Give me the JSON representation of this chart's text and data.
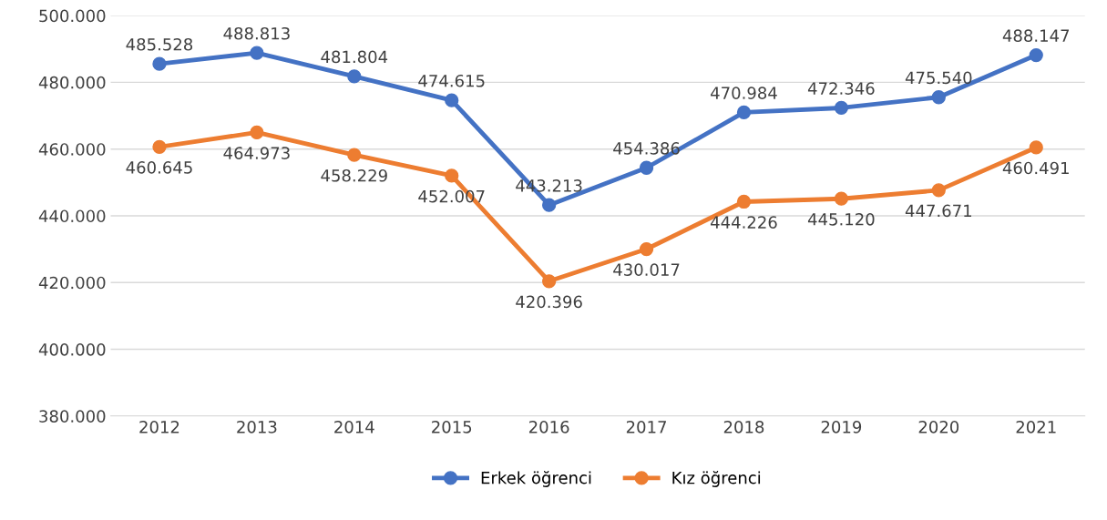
{
  "chart_data": {
    "type": "line",
    "categories": [
      "2012",
      "2013",
      "2014",
      "2015",
      "2016",
      "2017",
      "2018",
      "2019",
      "2020",
      "2021"
    ],
    "series": [
      {
        "name": "Erkek öğrenci",
        "color": "#4472c4",
        "values": [
          485528,
          488813,
          481804,
          474615,
          443213,
          454386,
          470984,
          472346,
          475540,
          488147
        ],
        "value_labels": [
          "485.528",
          "488.813",
          "481.804",
          "474.615",
          "443.213",
          "454.386",
          "470.984",
          "472.346",
          "475.540",
          "488.147"
        ]
      },
      {
        "name": "Kız öğrenci",
        "color": "#ed7d31",
        "values": [
          460645,
          464973,
          458229,
          452007,
          420396,
          430017,
          444226,
          445120,
          447671,
          460491
        ],
        "value_labels": [
          "460.645",
          "464.973",
          "458.229",
          "452.007",
          "420.396",
          "430.017",
          "444.226",
          "445.120",
          "447.671",
          "460.491"
        ]
      }
    ],
    "ylim": [
      380000,
      500000
    ],
    "yticks": [
      {
        "value": 380000,
        "label": "380.000"
      },
      {
        "value": 400000,
        "label": "400.000"
      },
      {
        "value": 420000,
        "label": "420.000"
      },
      {
        "value": 440000,
        "label": "440.000"
      },
      {
        "value": 460000,
        "label": "460.000"
      },
      {
        "value": 480000,
        "label": "480.000"
      },
      {
        "value": 500000,
        "label": "500.000"
      }
    ],
    "grid": "y",
    "legend": "bottom",
    "marker": "circle",
    "line_style": "solid"
  }
}
